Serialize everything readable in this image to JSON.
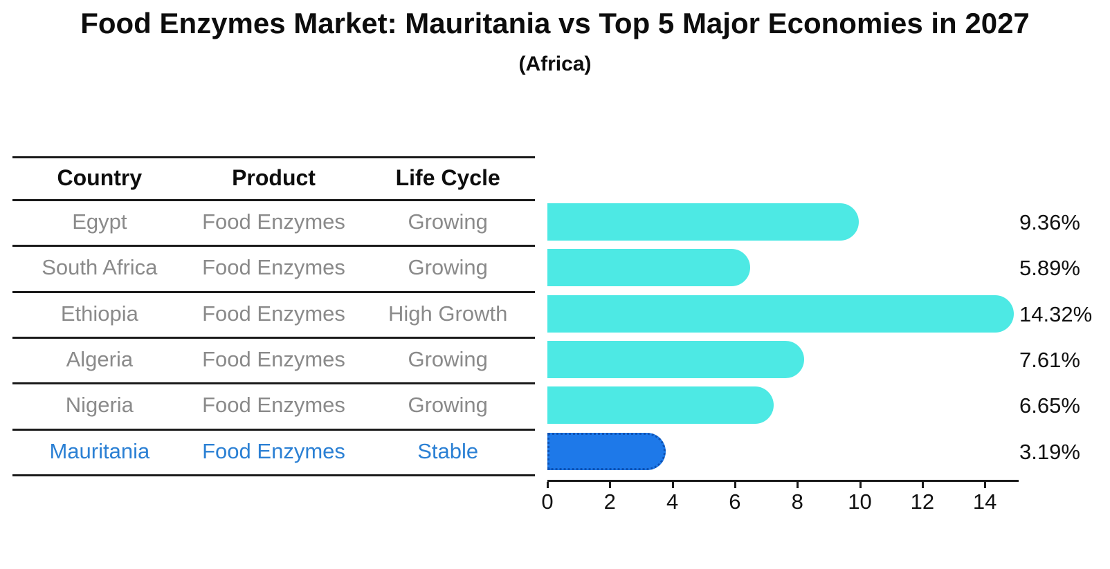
{
  "chart_data": {
    "type": "bar",
    "orientation": "horizontal",
    "title": "Food Enzymes Market: Mauritania vs Top 5 Major Economies in 2027",
    "subtitle": "(Africa)",
    "categories": [
      "Egypt",
      "South Africa",
      "Ethiopia",
      "Algeria",
      "Nigeria",
      "Mauritania"
    ],
    "values": [
      9.36,
      5.89,
      14.32,
      7.61,
      6.65,
      3.19
    ],
    "value_labels": [
      "9.36%",
      "5.89%",
      "14.32%",
      "7.61%",
      "6.65%",
      "3.19%"
    ],
    "xlabel": "",
    "ylabel": "",
    "xlim": [
      0,
      15.06
    ],
    "x_ticks": [
      0,
      2,
      4,
      6,
      8,
      10,
      12,
      14
    ],
    "x_tick_labels": [
      "0",
      "2",
      "4",
      "6",
      "8",
      "10",
      "12",
      "14"
    ],
    "grid": false,
    "legend": false,
    "highlight_index": 5
  },
  "table": {
    "headers": [
      "Country",
      "Product",
      "Life Cycle"
    ],
    "rows": [
      {
        "country": "Egypt",
        "product": "Food Enzymes",
        "life_cycle": "Growing"
      },
      {
        "country": "South Africa",
        "product": "Food Enzymes",
        "life_cycle": "Growing"
      },
      {
        "country": "Ethiopia",
        "product": "Food Enzymes",
        "life_cycle": "High Growth"
      },
      {
        "country": "Algeria",
        "product": "Food Enzymes",
        "life_cycle": "Growing"
      },
      {
        "country": "Nigeria",
        "product": "Food Enzymes",
        "life_cycle": "Growing"
      },
      {
        "country": "Mauritania",
        "product": "Food Enzymes",
        "life_cycle": "Stable"
      }
    ],
    "highlight_row_index": 5
  },
  "colors": {
    "bar": "#4DE9E4",
    "highlight_bar": "#1E79E9",
    "highlight_border": "#0D52B4",
    "row_text": "#8A8A8A",
    "highlight_text": "#2B80D4",
    "line": "#1A1A1A",
    "label_text": "#111111"
  }
}
